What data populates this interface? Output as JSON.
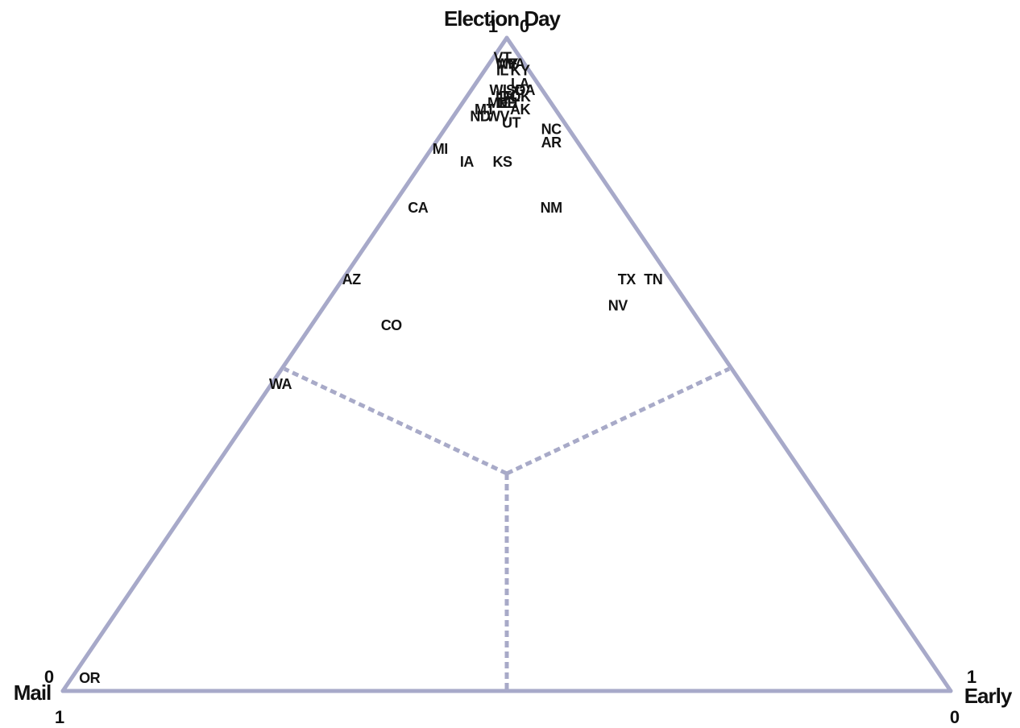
{
  "colors": {
    "frame": "#a7a9c9",
    "region_lines": "#a8aac8",
    "text": "#111111"
  },
  "chart_data": {
    "type": "scatter",
    "subtype": "ternary",
    "axes": {
      "top": {
        "label": "Election Day",
        "tick_left": "1",
        "tick_right": "0"
      },
      "bottom_left": {
        "label": "Mail",
        "tick_top": "0",
        "tick_bottom": "1"
      },
      "bottom_right": {
        "label": "Early",
        "tick_top": "1",
        "tick_bottom": "0"
      }
    },
    "region_lines": "dashed lines from centroid to midpoint of each edge",
    "grid": false,
    "legend": "none",
    "points": [
      {
        "label": "OR",
        "mail": 0.96,
        "early": 0.02,
        "election_day": 0.02
      },
      {
        "label": "WA",
        "mail": 0.52,
        "early": 0.01,
        "election_day": 0.47
      },
      {
        "label": "AZ",
        "mail": 0.36,
        "early": 0.01,
        "election_day": 0.63
      },
      {
        "label": "CO",
        "mail": 0.35,
        "early": 0.09,
        "election_day": 0.56
      },
      {
        "label": "CA",
        "mail": 0.23,
        "early": 0.03,
        "election_day": 0.74
      },
      {
        "label": "MI",
        "mail": 0.16,
        "early": 0.01,
        "election_day": 0.83
      },
      {
        "label": "IA",
        "mail": 0.14,
        "early": 0.05,
        "election_day": 0.81
      },
      {
        "label": "KS",
        "mail": 0.1,
        "early": 0.09,
        "election_day": 0.81
      },
      {
        "label": "NM",
        "mail": 0.08,
        "early": 0.18,
        "election_day": 0.74
      },
      {
        "label": "TX",
        "mail": 0.05,
        "early": 0.32,
        "election_day": 0.63
      },
      {
        "label": "TN",
        "mail": 0.02,
        "early": 0.35,
        "election_day": 0.63
      },
      {
        "label": "NV",
        "mail": 0.08,
        "early": 0.33,
        "election_day": 0.59
      },
      {
        "label": "NC",
        "mail": 0.02,
        "early": 0.12,
        "election_day": 0.86
      },
      {
        "label": "AR",
        "mail": 0.03,
        "early": 0.13,
        "election_day": 0.84
      },
      {
        "label": "ND",
        "mail": 0.09,
        "early": 0.03,
        "election_day": 0.88
      },
      {
        "label": "WV",
        "mail": 0.07,
        "early": 0.05,
        "election_day": 0.88
      },
      {
        "label": "UT",
        "mail": 0.06,
        "early": 0.07,
        "election_day": 0.87
      },
      {
        "label": "MT",
        "mail": 0.08,
        "early": 0.03,
        "election_day": 0.89
      },
      {
        "label": "AK",
        "mail": 0.04,
        "early": 0.07,
        "election_day": 0.89
      },
      {
        "label": "ME",
        "mail": 0.06,
        "early": 0.04,
        "election_day": 0.9
      },
      {
        "label": "NE",
        "mail": 0.05,
        "early": 0.05,
        "election_day": 0.9
      },
      {
        "label": "WI",
        "mail": 0.05,
        "early": 0.03,
        "election_day": 0.92
      },
      {
        "label": "ID",
        "mail": 0.05,
        "early": 0.04,
        "election_day": 0.91
      },
      {
        "label": "SD",
        "mail": 0.03,
        "early": 0.05,
        "election_day": 0.92
      },
      {
        "label": "OK",
        "mail": 0.03,
        "early": 0.06,
        "election_day": 0.91
      },
      {
        "label": "GA",
        "mail": 0.02,
        "early": 0.06,
        "election_day": 0.92
      },
      {
        "label": "LA",
        "mail": 0.02,
        "early": 0.05,
        "election_day": 0.93
      },
      {
        "label": "FL",
        "mail": 0.04,
        "early": 0.05,
        "election_day": 0.91
      },
      {
        "label": "OH",
        "mail": 0.05,
        "early": 0.05,
        "election_day": 0.9
      },
      {
        "label": "KY",
        "mail": 0.01,
        "early": 0.04,
        "election_day": 0.95
      },
      {
        "label": "VA",
        "mail": 0.01,
        "early": 0.03,
        "election_day": 0.96
      },
      {
        "label": "ME",
        "mail": 0.02,
        "early": 0.02,
        "election_day": 0.96
      },
      {
        "label": "WY",
        "mail": 0.02,
        "early": 0.02,
        "election_day": 0.96
      },
      {
        "label": "VT",
        "mail": 0.02,
        "early": 0.01,
        "election_day": 0.97
      },
      {
        "label": "IL",
        "mail": 0.03,
        "early": 0.02,
        "election_day": 0.95
      }
    ]
  }
}
